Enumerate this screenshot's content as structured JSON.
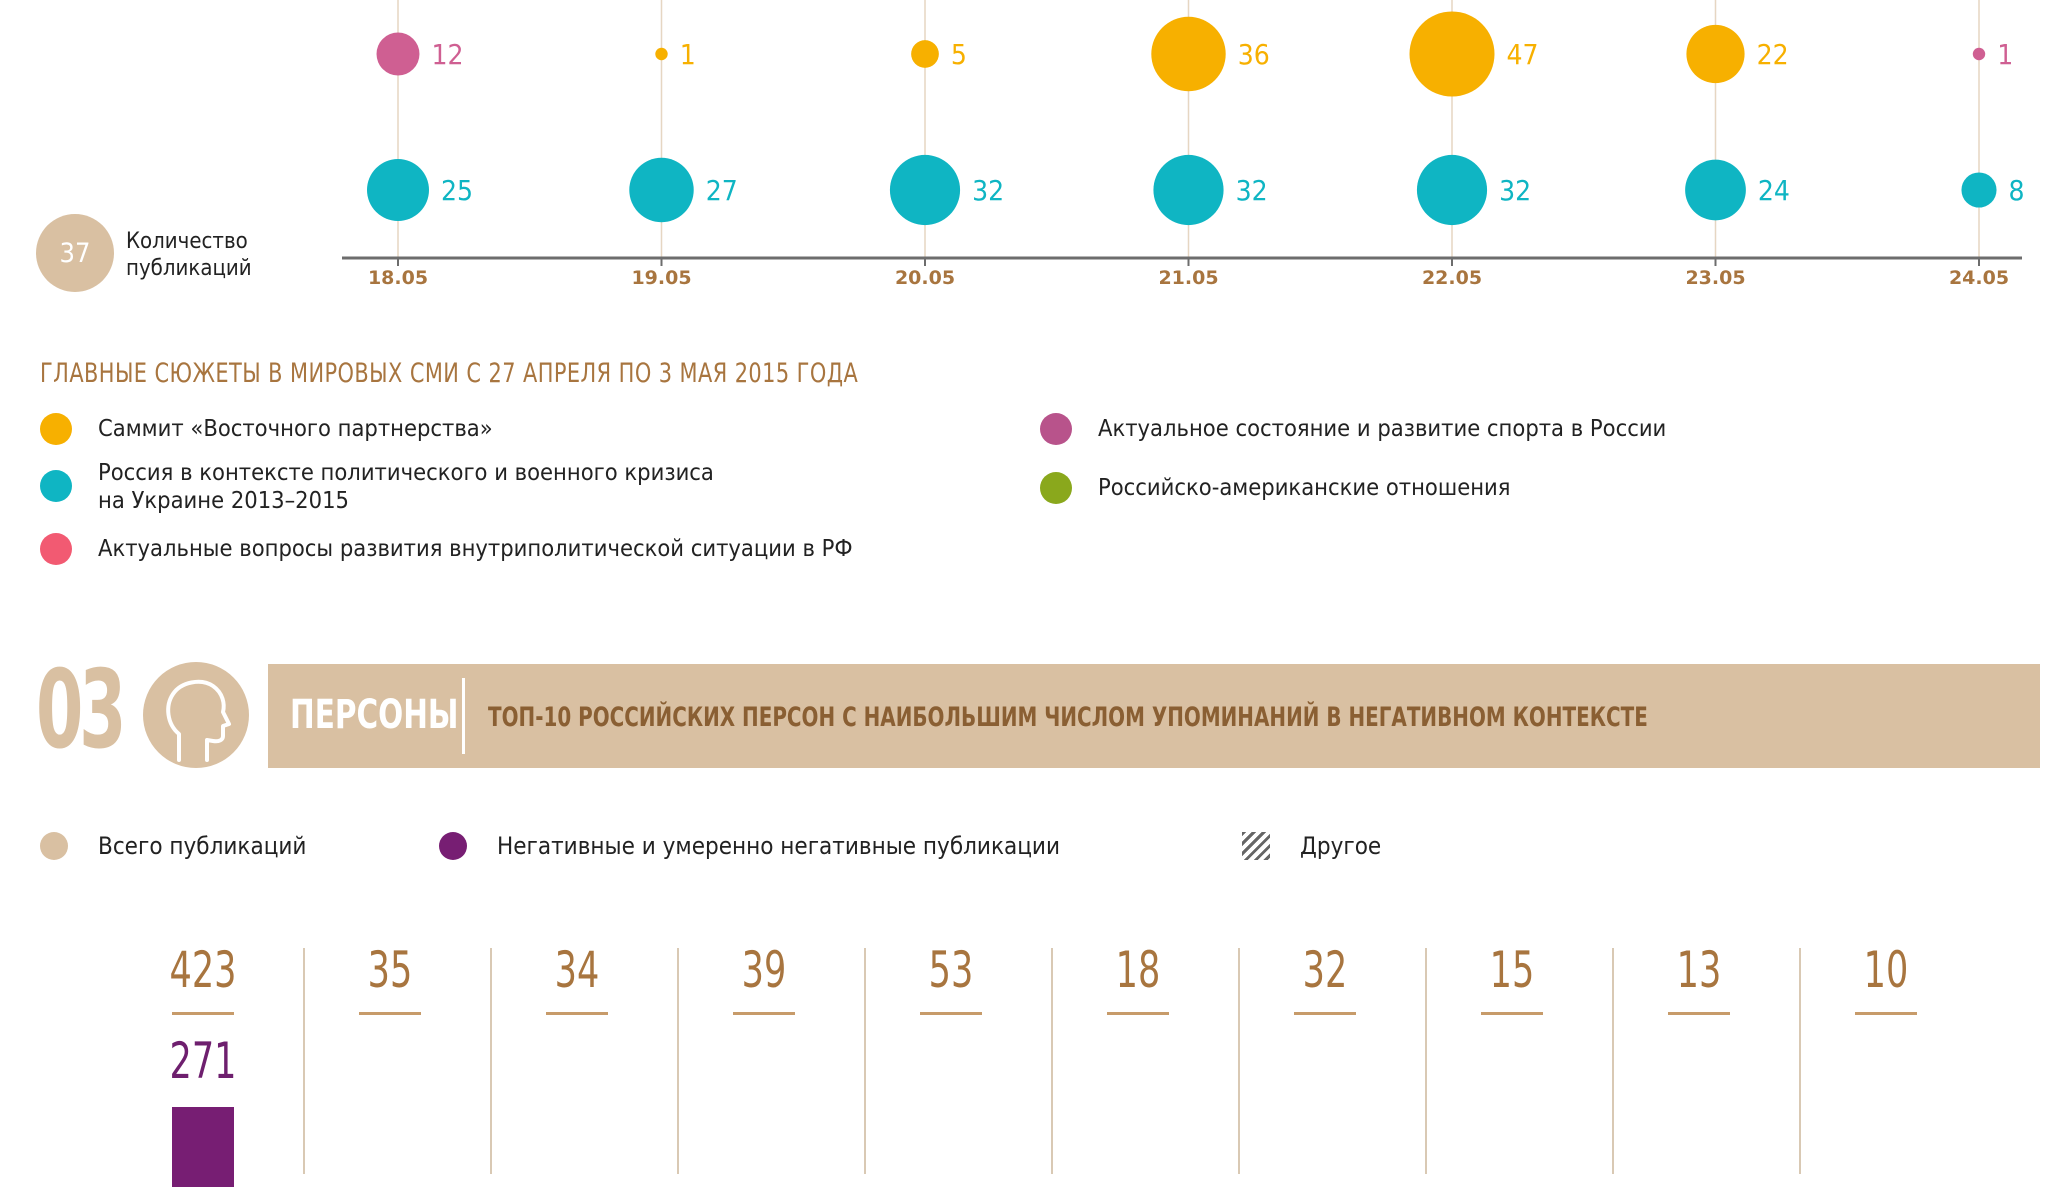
{
  "chart_data": {
    "type": "scatter",
    "x": [
      "18.05",
      "19.05",
      "20.05",
      "21.05",
      "22.05",
      "23.05",
      "24.05"
    ],
    "series": [
      {
        "color": "#cf5f92",
        "values": [
          12,
          null,
          null,
          null,
          null,
          null,
          1
        ]
      },
      {
        "color": "#f7b000",
        "values": [
          null,
          1,
          5,
          36,
          47,
          22,
          null
        ]
      },
      {
        "color": "#0fb5c3",
        "values": [
          25,
          27,
          32,
          32,
          32,
          24,
          8
        ]
      }
    ],
    "legend_key": {
      "value": "37",
      "label_line1": "Количество",
      "label_line2": "публикаций"
    }
  },
  "topics": {
    "title": "ГЛАВНЫЕ СЮЖЕТЫ В МИРОВЫХ СМИ С 27 АПРЕЛЯ ПО 3 МАЯ 2015 ГОДА",
    "items": [
      {
        "color": "#f7b000",
        "line1": "Саммит «Восточного партнерства»",
        "line2": ""
      },
      {
        "color": "#0fb5c3",
        "line1": "Россия в контексте политического и военного кризиса",
        "line2": "на Украине 2013–2015"
      },
      {
        "color": "#f25a72",
        "line1": "Актуальные вопросы развития внутриполитической ситуации в РФ",
        "line2": ""
      },
      {
        "color": "#b8538b",
        "line1": "Актуальное состояние и развитие спорта в России",
        "line2": ""
      },
      {
        "color": "#8aa81c",
        "line1": "Российско-американские отношения",
        "line2": ""
      }
    ]
  },
  "persons_section": {
    "number": "03",
    "title": "ПЕРСОНЫ",
    "subtitle": "ТОП-10 РОССИЙСКИХ ПЕРСОН С НАИБОЛЬШИМ ЧИСЛОМ УПОМИНАНИЙ В НЕГАТИВНОМ КОНТЕКСТЕ",
    "legend": [
      {
        "label": "Всего публикаций",
        "color": "#d9c0a2",
        "type": "dot"
      },
      {
        "label": "Негативные и умеренно негативные публикации",
        "color": "#771e73",
        "type": "dot"
      },
      {
        "label": "Другое",
        "type": "hatch"
      }
    ],
    "totals": [
      "423",
      "35",
      "34",
      "39",
      "53",
      "18",
      "32",
      "15",
      "13",
      "10"
    ],
    "negatives": [
      "271",
      "",
      "",
      "",
      "",
      "",
      "",
      "",
      "",
      ""
    ]
  }
}
